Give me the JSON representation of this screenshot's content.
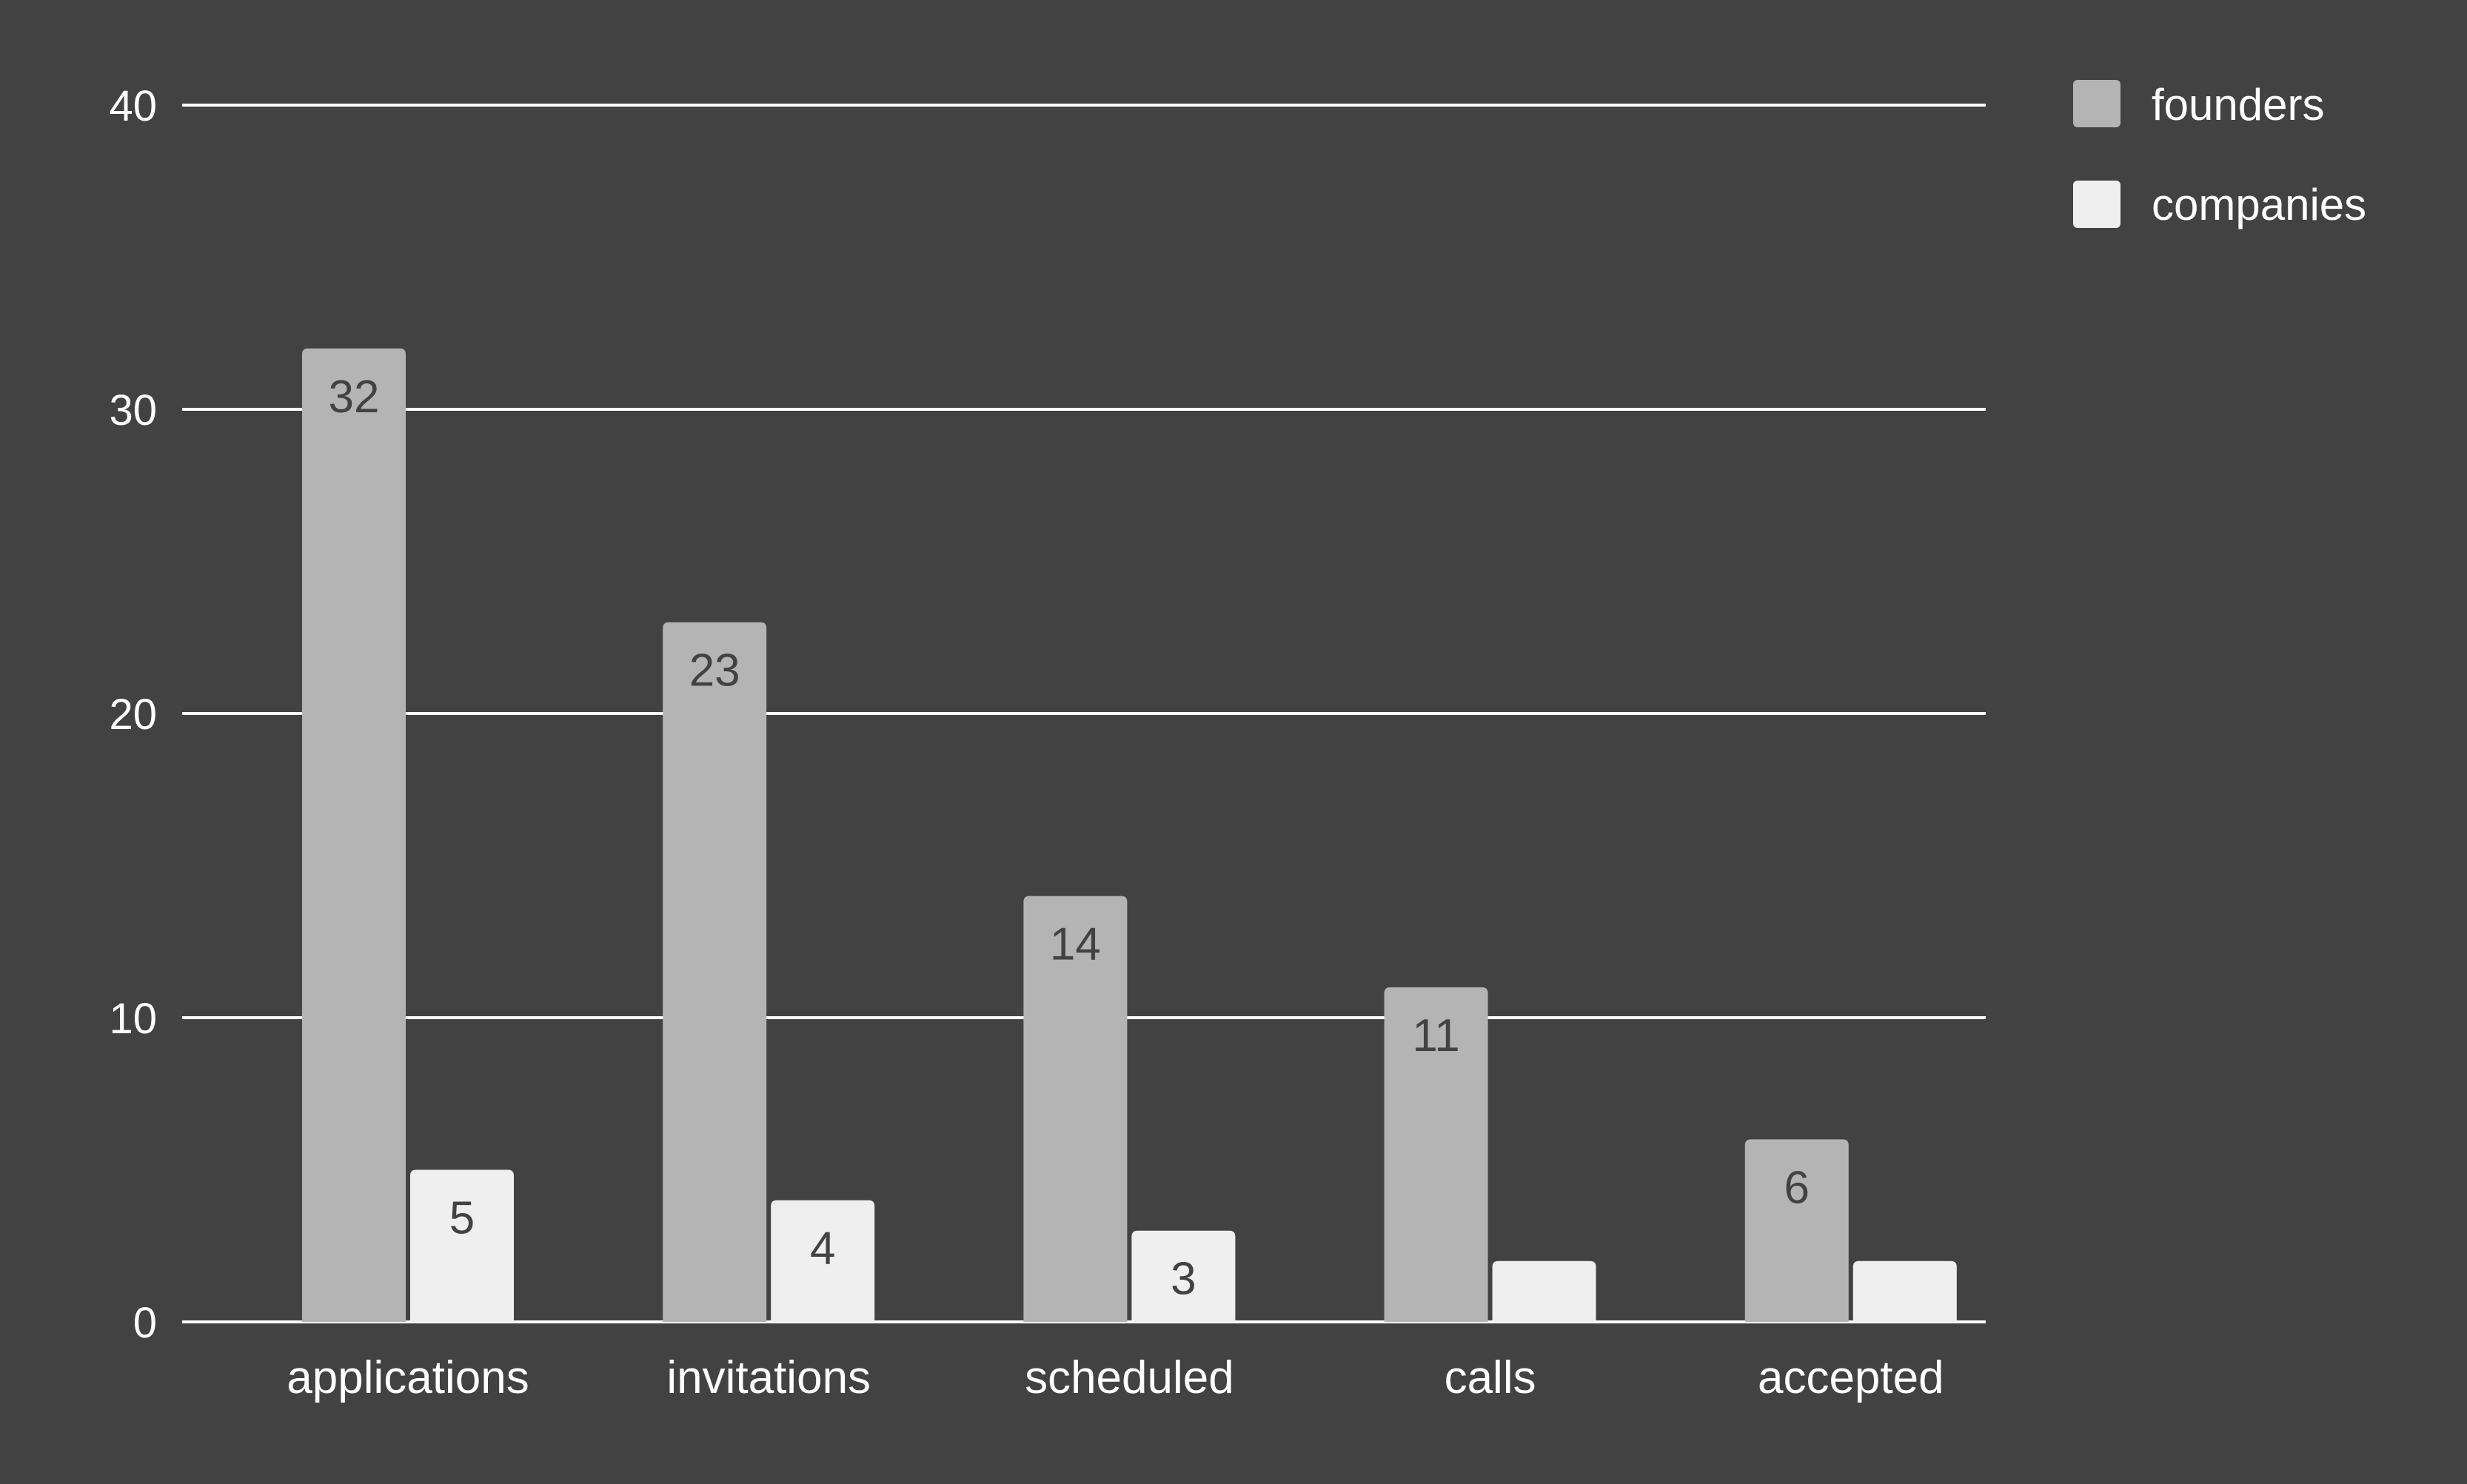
{
  "chart_data": {
    "type": "bar",
    "title": "",
    "xlabel": "",
    "ylabel": "",
    "categories": [
      "applications",
      "invitations",
      "scheduled",
      "calls",
      "accepted"
    ],
    "series": [
      {
        "name": "founders",
        "values": [
          32,
          23,
          14,
          11,
          6
        ],
        "color": "#b4b4b4",
        "data_labels": [
          "32",
          "23",
          "14",
          "11",
          "6"
        ]
      },
      {
        "name": "companies",
        "values": [
          5,
          4,
          3,
          2,
          2
        ],
        "color": "#efefef",
        "data_labels": [
          "5",
          "4",
          "3",
          "",
          ""
        ]
      }
    ],
    "ylim": [
      0,
      40
    ],
    "yticks": [
      0,
      10,
      20,
      30,
      40
    ],
    "grid": true,
    "legend_position": "top-right",
    "colors": {
      "background": "#424242",
      "gridline": "#ffffff",
      "axis_text": "#ffffff",
      "data_label": "#424242"
    }
  }
}
